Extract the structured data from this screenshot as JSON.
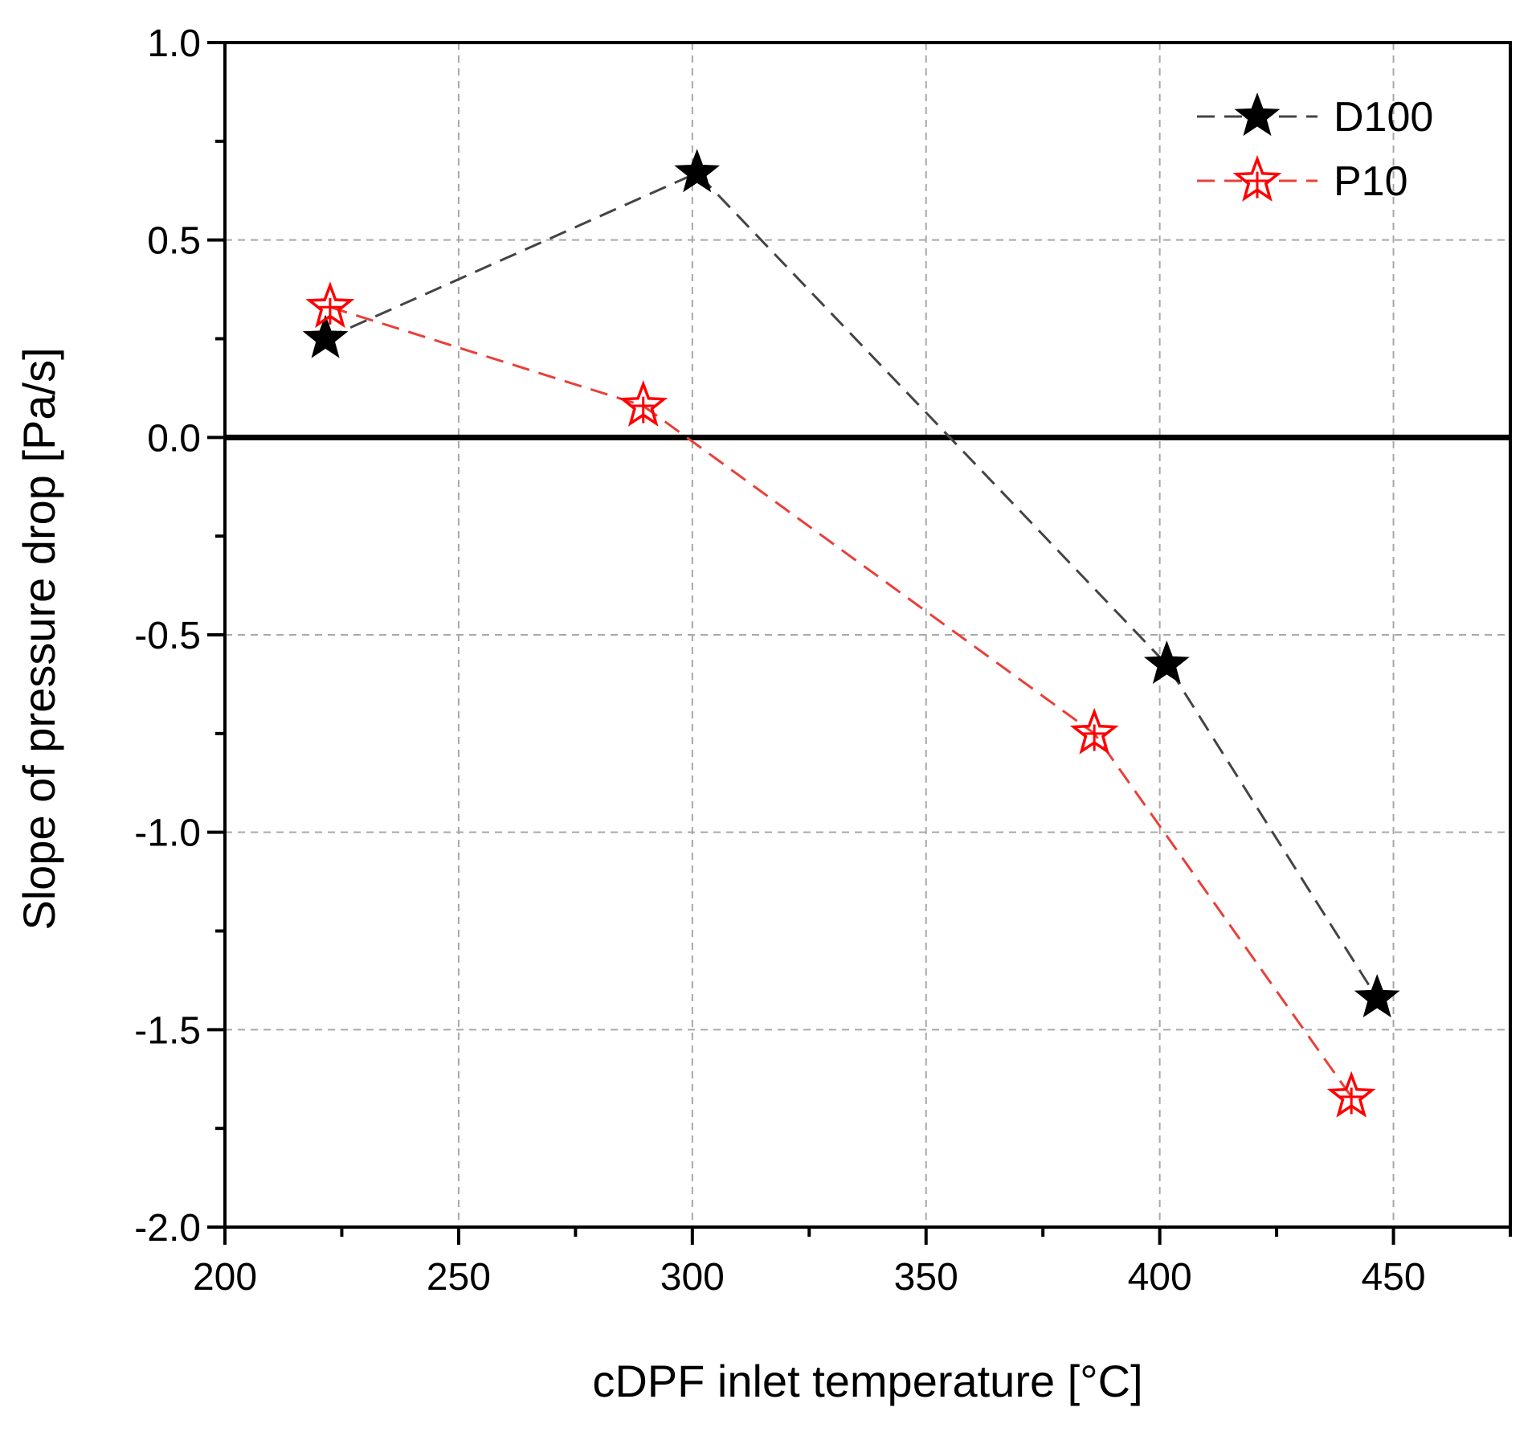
{
  "chart_data": {
    "type": "line",
    "xlabel": "cDPF inlet temperature [°C]",
    "ylabel": "Slope of pressure drop [Pa/s]",
    "xlim": [
      200,
      475
    ],
    "ylim": [
      -2.0,
      1.0
    ],
    "x_ticks": [
      200,
      250,
      300,
      350,
      400,
      450
    ],
    "x_tick_labels": [
      "200",
      "250",
      "300",
      "350",
      "400",
      "450"
    ],
    "y_ticks": [
      1.0,
      0.5,
      0.0,
      -0.5,
      -1.0,
      -1.5,
      -2.0
    ],
    "y_tick_labels": [
      "1.0",
      "0.5",
      "0.0",
      "-0.5",
      "-1.0",
      "-1.5",
      "-2.0"
    ],
    "grid": true,
    "legend_position": "top-right",
    "zero_line": true,
    "series": [
      {
        "name": "D100",
        "color": "#000000",
        "line_color": "#444444",
        "marker": "filled-star",
        "line_style": "dashed",
        "x": [
          221.5,
          301,
          401.5,
          446.5
        ],
        "y": [
          0.25,
          0.67,
          -0.575,
          -1.42
        ]
      },
      {
        "name": "P10",
        "color": "#ff0000",
        "line_color": "#e8403a",
        "marker": "open-star",
        "line_style": "dashed",
        "x": [
          222.5,
          289.5,
          386,
          441
        ],
        "y": [
          0.33,
          0.08,
          -0.75,
          -1.67
        ]
      }
    ]
  }
}
